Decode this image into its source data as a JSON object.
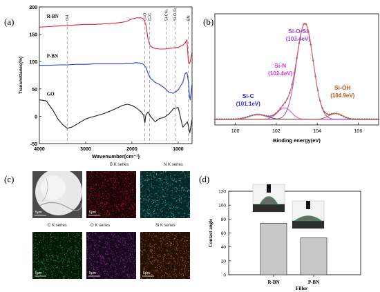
{
  "panel_letters": [
    "(a)",
    "(b)",
    "(c)",
    "(d)"
  ],
  "chart_data": [
    {
      "id": "a",
      "type": "line",
      "xlabel": "Wavenumber(cm⁻¹)",
      "ylabel": "Transmittance(%)",
      "xlim": [
        4000,
        700
      ],
      "ylim": [
        -50,
        200
      ],
      "xticks": [
        4000,
        3000,
        2000,
        1000
      ],
      "yticks": [
        -50,
        0,
        50,
        100,
        150,
        200
      ],
      "series": [
        {
          "name": "R-BN",
          "color": "#e8262a",
          "x": [
            4000,
            3800,
            3600,
            3400,
            3200,
            3000,
            2800,
            2600,
            2400,
            2200,
            2100,
            2000,
            1900,
            1800,
            1750,
            1700,
            1650,
            1600,
            1500,
            1400,
            1300,
            1200,
            1100,
            1000,
            900,
            850,
            810,
            780,
            760,
            740,
            720,
            700
          ],
          "y": [
            163,
            164,
            165,
            166,
            167,
            168,
            168,
            169,
            170,
            172,
            174,
            178,
            180,
            180,
            178,
            168,
            140,
            128,
            124,
            123,
            123,
            124,
            125,
            126,
            130,
            134,
            140,
            100,
            96,
            100,
            110,
            116
          ]
        },
        {
          "name": "P-BN",
          "color": "#1f3fd8",
          "x": [
            4000,
            3800,
            3600,
            3400,
            3200,
            3000,
            2800,
            2600,
            2400,
            2200,
            2100,
            2000,
            1900,
            1800,
            1750,
            1700,
            1650,
            1600,
            1500,
            1400,
            1300,
            1200,
            1100,
            1000,
            900,
            850,
            810,
            780,
            760,
            740,
            720,
            700
          ],
          "y": [
            93,
            93,
            94,
            94,
            95,
            95,
            96,
            96,
            96,
            96,
            97,
            97,
            98,
            97,
            95,
            90,
            78,
            70,
            62,
            58,
            52,
            44,
            42,
            48,
            62,
            78,
            80,
            64,
            40,
            30,
            44,
            58
          ]
        },
        {
          "name": "GO",
          "color": "#1a1a1a",
          "x": [
            4000,
            3850,
            3700,
            3600,
            3500,
            3400,
            3300,
            3200,
            3100,
            3000,
            2900,
            2800,
            2600,
            2400,
            2200,
            2100,
            2000,
            1900,
            1800,
            1750,
            1720,
            1700,
            1650,
            1600,
            1500,
            1400,
            1300,
            1200,
            1100,
            1000,
            900,
            800,
            750,
            700
          ],
          "y": [
            30,
            28,
            10,
            -5,
            -15,
            -22,
            -20,
            -15,
            -10,
            -5,
            -2,
            0,
            5,
            12,
            20,
            22,
            20,
            15,
            8,
            2,
            -12,
            2,
            8,
            0,
            -10,
            -4,
            -2,
            4,
            14,
            16,
            -20,
            -10,
            -30,
            -6
          ]
        }
      ],
      "annotations": [
        {
          "label": "OH",
          "x": 3400
        },
        {
          "label": "C=O",
          "x": 1720
        },
        {
          "label": "C=C",
          "x": 1620
        },
        {
          "label": "Si-CH₃",
          "x": 1260
        },
        {
          "label": "Si-O-Si",
          "x": 1070
        },
        {
          "label": "BN",
          "x": 780
        }
      ]
    },
    {
      "id": "b",
      "type": "line",
      "xlabel": "Binding energy(eV)",
      "xlim": [
        99,
        107
      ],
      "xticks": [
        100,
        102,
        104,
        106
      ],
      "peaks": [
        {
          "name": "Si-C",
          "center": 101.1,
          "height": 0.05,
          "width": 0.9,
          "color": "#2a2ad0",
          "label_text": "(101.1eV)"
        },
        {
          "name": "Si-N",
          "center": 102.4,
          "height": 0.12,
          "width": 0.7,
          "color": "#e52fe3",
          "label_text": "(102.4eV)"
        },
        {
          "name": "Si-O-Si",
          "center": 103.4,
          "height": 1.0,
          "width": 0.85,
          "color": "#9a3fd8",
          "label_text": "(103.4eV)"
        },
        {
          "name": "Si-OH",
          "center": 104.9,
          "height": 0.06,
          "width": 0.7,
          "color": "#b05a17",
          "label_text": "(104.9eV)"
        }
      ],
      "baseline_color": "#7a7a7a",
      "data_color": "#555555",
      "fit_color": "#e05f5f"
    },
    {
      "id": "d",
      "type": "bar",
      "categories": [
        "R-BN",
        "P-BN"
      ],
      "values": [
        74,
        53
      ],
      "xlabel": "Filler",
      "ylabel": "Contact angle",
      "ylim": [
        0,
        120
      ],
      "yticks": [
        0,
        20,
        40,
        60,
        80,
        100,
        120
      ],
      "bar_color": "#c8c8c8"
    }
  ],
  "eds": {
    "maps": [
      {
        "title": "",
        "base": "#3a3a3a",
        "dot": "#ffffff",
        "kind": "sem",
        "scale": "5μm"
      },
      {
        "title": "B K series",
        "base": "#1e0507",
        "dot": "#d21c2a",
        "kind": "map",
        "scale": "5μm"
      },
      {
        "title": "N K series",
        "base": "#062826",
        "dot": "#35c9c9",
        "kind": "map",
        "scale": ""
      },
      {
        "title": "C K series",
        "base": "#041807",
        "dot": "#2aa440",
        "kind": "map",
        "scale": "5μm"
      },
      {
        "title": "O K series",
        "base": "#1a0720",
        "dot": "#a43aa8",
        "kind": "map",
        "scale": "5μm"
      },
      {
        "title": "Si K series",
        "base": "#241005",
        "dot": "#d87b2a",
        "kind": "map",
        "scale": "5μm"
      }
    ]
  }
}
